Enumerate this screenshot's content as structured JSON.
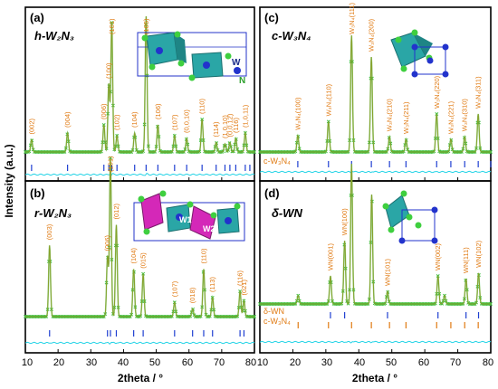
{
  "colors": {
    "observed": "#3fbf3f",
    "calculated": "#e07a12",
    "difference": "#22d3e6",
    "bragg_primary": "#1f3fd1",
    "bragg_secondary": "#e07a12",
    "peak_label": "#e07a12"
  },
  "axes": {
    "ylabel": "Intensity (a.u.)",
    "xlabel_left": "2theta / °",
    "xlabel_right": "2theta / °",
    "xticks": [
      "10",
      "20",
      "30",
      "40",
      "50",
      "60",
      "70",
      "80"
    ]
  },
  "chart_data": [
    {
      "type": "line",
      "panel": "(a)",
      "phase": "h-W₂N₃",
      "xlim": [
        10,
        80
      ],
      "series": [],
      "peaks": [
        {
          "x": 11.9,
          "h": 0.09,
          "label": "(002)"
        },
        {
          "x": 22.9,
          "h": 0.14,
          "label": "(004)"
        },
        {
          "x": 34.0,
          "h": 0.2,
          "label": "(006)"
        },
        {
          "x": 35.5,
          "h": 0.5,
          "label": "(100)"
        },
        {
          "x": 36.4,
          "h": 0.95,
          "label": "(101)"
        },
        {
          "x": 38.0,
          "h": 0.12,
          "label": "(102)"
        },
        {
          "x": 43.4,
          "h": 0.14,
          "label": "(104)"
        },
        {
          "x": 46.9,
          "h": 1.0,
          "label": "(105)"
        },
        {
          "x": 50.5,
          "h": 0.2,
          "label": "(106)"
        },
        {
          "x": 55.6,
          "h": 0.12,
          "label": "(107)"
        },
        {
          "x": 59.3,
          "h": 0.1,
          "label": "(0,0,10)"
        },
        {
          "x": 64.0,
          "h": 0.24,
          "label": "(110)"
        },
        {
          "x": 68.3,
          "h": 0.07,
          "label": "(114)"
        },
        {
          "x": 71.0,
          "h": 0.06,
          "label": "(1,0,10)"
        },
        {
          "x": 72.5,
          "h": 0.07,
          "label": "(0,0,12)"
        },
        {
          "x": 74.3,
          "h": 0.1,
          "label": "(116)"
        },
        {
          "x": 77.2,
          "h": 0.14,
          "label": "(1,0,11)"
        }
      ],
      "ticks_primary": [
        11.9,
        22.9,
        34.0,
        35.5,
        36.4,
        38.0,
        43.4,
        46.9,
        50.5,
        55.6,
        59.3,
        64.0,
        68.3,
        71.0,
        72.5,
        74.3,
        77.2,
        78.6
      ],
      "ticks_secondary": [],
      "annotations": [
        "W",
        "N"
      ]
    },
    {
      "type": "line",
      "panel": "(b)",
      "phase": "r-W₂N₃",
      "xlim": [
        10,
        80
      ],
      "series": [],
      "peaks": [
        {
          "x": 17.4,
          "h": 0.45,
          "label": "(003)"
        },
        {
          "x": 35.1,
          "h": 0.38,
          "label": "(006)"
        },
        {
          "x": 36.0,
          "h": 1.0,
          "label": "(101)"
        },
        {
          "x": 37.8,
          "h": 0.58,
          "label": "(012)"
        },
        {
          "x": 43.1,
          "h": 0.3,
          "label": "(104)"
        },
        {
          "x": 46.0,
          "h": 0.27,
          "label": "(015)"
        },
        {
          "x": 55.6,
          "h": 0.09,
          "label": "(107)"
        },
        {
          "x": 61.1,
          "h": 0.05,
          "label": "(018)"
        },
        {
          "x": 64.5,
          "h": 0.3,
          "label": "(110)"
        },
        {
          "x": 67.2,
          "h": 0.12,
          "label": "(113)"
        },
        {
          "x": 75.6,
          "h": 0.16,
          "label": "(116)"
        },
        {
          "x": 76.8,
          "h": 0.1,
          "label": "(021)"
        }
      ],
      "ticks_primary": [
        17.4,
        35.1,
        36.0,
        37.8,
        43.1,
        46.0,
        55.6,
        61.1,
        64.5,
        67.2,
        75.6,
        76.8
      ],
      "ticks_secondary": [],
      "annotations": [
        "W1",
        "W2"
      ]
    },
    {
      "type": "line",
      "panel": "(c)",
      "phase": "c-W₃N₄",
      "xlim": [
        10,
        80
      ],
      "series": [],
      "peaks": [
        {
          "x": 21.5,
          "h": 0.13,
          "label": "W₃N₄(100)"
        },
        {
          "x": 30.8,
          "h": 0.24,
          "label": "W₃N₄(110)"
        },
        {
          "x": 37.8,
          "h": 0.92,
          "label": "W₃N₄(111)"
        },
        {
          "x": 43.8,
          "h": 0.75,
          "label": "W₃N₄(200)"
        },
        {
          "x": 49.3,
          "h": 0.12,
          "label": "W₃N₄(210)"
        },
        {
          "x": 54.3,
          "h": 0.1,
          "label": "W₃N₄(211)"
        },
        {
          "x": 63.6,
          "h": 0.3,
          "label": "W₃N₄(220)"
        },
        {
          "x": 67.9,
          "h": 0.1,
          "label": "W₃N₄(221)"
        },
        {
          "x": 72.1,
          "h": 0.12,
          "label": "W₃N₄(310)"
        },
        {
          "x": 76.2,
          "h": 0.3,
          "label": "W₃N₄(311)"
        }
      ],
      "ticks_primary": [
        21.5,
        30.8,
        37.8,
        43.8,
        49.3,
        54.3,
        63.6,
        67.9,
        72.1,
        76.2,
        80.0
      ],
      "ticks_secondary": [],
      "tick_label": "c-W₃N₄"
    },
    {
      "type": "line",
      "panel": "(d)",
      "phase": "δ-WN",
      "xlim": [
        10,
        80
      ],
      "series": [],
      "peaks": [
        {
          "x": 21.6,
          "h": 0.06,
          "label": ""
        },
        {
          "x": 31.4,
          "h": 0.2,
          "label": "WN(001)"
        },
        {
          "x": 35.7,
          "h": 0.45,
          "label": "WN(100)"
        },
        {
          "x": 37.8,
          "h": 1.0,
          "label": ""
        },
        {
          "x": 43.9,
          "h": 0.78,
          "label": ""
        },
        {
          "x": 48.7,
          "h": 0.09,
          "label": "WN(101)"
        },
        {
          "x": 64.0,
          "h": 0.2,
          "label": "WN(002)"
        },
        {
          "x": 66.0,
          "h": 0.06,
          "label": ""
        },
        {
          "x": 72.5,
          "h": 0.18,
          "label": "WN(111)"
        },
        {
          "x": 76.3,
          "h": 0.22,
          "label": "WN(102)"
        }
      ],
      "ticks_primary": [
        31.4,
        35.7,
        48.7,
        64.0,
        72.5,
        76.3
      ],
      "ticks_secondary": [
        21.6,
        30.8,
        37.8,
        43.8,
        49.3,
        54.3,
        63.6,
        67.9,
        72.1,
        76.2
      ],
      "tick_label_primary": "δ-WN",
      "tick_label_secondary": "c-W₃N₄"
    }
  ]
}
